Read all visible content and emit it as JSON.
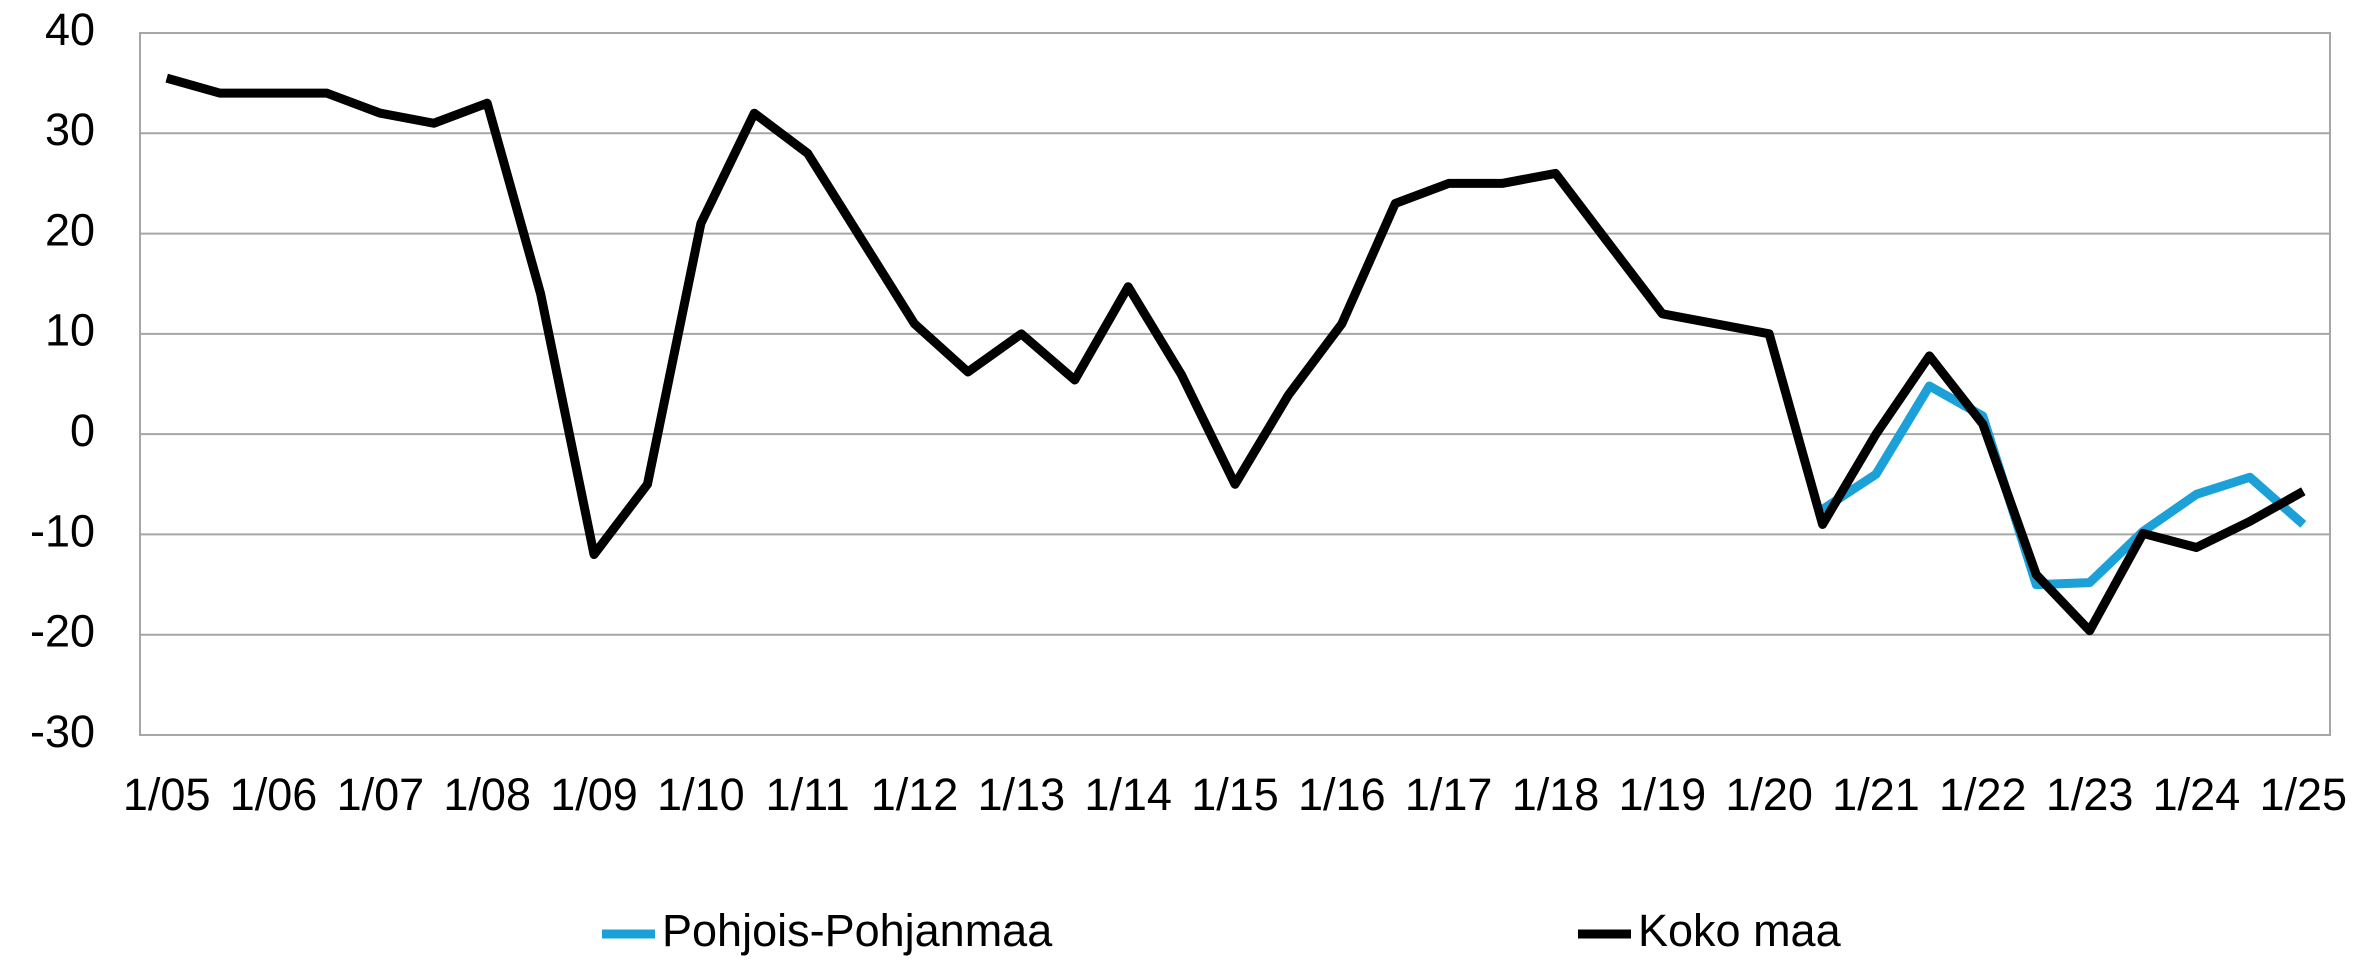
{
  "chart_data": {
    "type": "line",
    "categories": [
      "1/05",
      null,
      "1/06",
      null,
      "1/07",
      null,
      "1/08",
      null,
      "1/09",
      null,
      "1/10",
      null,
      "1/11",
      null,
      "1/12",
      null,
      "1/13",
      null,
      "1/14",
      null,
      "1/15",
      null,
      "1/16",
      null,
      "1/17",
      null,
      "1/18",
      null,
      "1/19",
      null,
      "1/20",
      null,
      "1/21",
      null,
      "1/22",
      null,
      "1/23",
      null,
      "1/24",
      null,
      "1/25"
    ],
    "series": [
      {
        "name": "Pohjois-Pohjanmaa",
        "color": "#1ba1d8",
        "values": [
          null,
          null,
          null,
          null,
          null,
          null,
          null,
          null,
          null,
          null,
          null,
          null,
          null,
          null,
          null,
          null,
          null,
          null,
          null,
          null,
          null,
          null,
          null,
          null,
          null,
          null,
          null,
          null,
          null,
          null,
          null,
          -7.5,
          -4,
          4.8,
          1.8,
          -15,
          -14.8,
          -9.7,
          -6,
          -4.3,
          -9
        ]
      },
      {
        "name": "Koko maa",
        "color": "#000000",
        "values": [
          35.5,
          34,
          34,
          34,
          32,
          31,
          33,
          14,
          -12,
          -5,
          21,
          32,
          28,
          19.5,
          11,
          6.2,
          10,
          5.4,
          14.7,
          5.9,
          -5,
          3.9,
          11,
          23,
          25,
          25,
          26,
          19,
          12,
          11,
          10,
          -9,
          0,
          7.8,
          1,
          -14,
          -19.6,
          -9.9,
          -11.3,
          -8.7,
          -5.7
        ]
      }
    ],
    "ylim": [
      -30,
      40
    ],
    "yticks": [
      -30,
      -20,
      -10,
      0,
      10,
      20,
      30,
      40
    ],
    "grid": true,
    "legend": "bottom"
  }
}
